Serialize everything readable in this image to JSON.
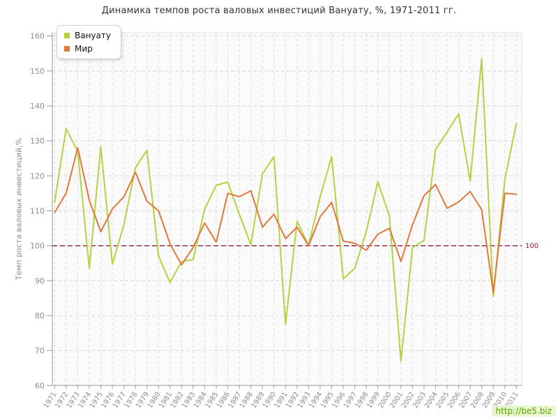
{
  "chart_data": {
    "type": "line",
    "title": "Динамика темпов роста валовых инвестиций Вануату, %, 1971-2011 гг.",
    "ylabel": "Темп роста валовых инвестиций,%",
    "ylim": [
      60,
      160
    ],
    "ytick_step": 10,
    "grid": "dashed",
    "legend_position": "top-left",
    "categories": [
      "1971",
      "1972",
      "1973",
      "1974",
      "1975",
      "1976",
      "1977",
      "1978",
      "1979",
      "1980",
      "1981",
      "1982",
      "1983",
      "1984",
      "1985",
      "1986",
      "1987",
      "1988",
      "1989",
      "1990",
      "1991",
      "1992",
      "1993",
      "1994",
      "1995",
      "1996",
      "1997",
      "1998",
      "1999",
      "2000",
      "2001",
      "2002",
      "2003",
      "2004",
      "2005",
      "2006",
      "2007",
      "2008",
      "2009",
      "2010",
      "2011"
    ],
    "series": [
      {
        "name": "Вануату",
        "color": "#b3d23f",
        "values": [
          112.5,
          133.5,
          127,
          93.5,
          128.3,
          94.7,
          106,
          122.3,
          127.3,
          97,
          89.5,
          95.5,
          96,
          110.5,
          117.3,
          118.2,
          109,
          100.3,
          120.5,
          125.5,
          77.5,
          107,
          100,
          114,
          125.5,
          90.5,
          93.5,
          104,
          118.3,
          108.5,
          67,
          99.5,
          101.5,
          127.5,
          132.5,
          137.7,
          118.5,
          153.5,
          85.5,
          119,
          135
        ]
      },
      {
        "name": "Мир",
        "color": "#e2773b",
        "values": [
          109.5,
          115,
          128,
          113,
          104,
          110.5,
          114,
          121,
          112.7,
          110,
          100.5,
          94.5,
          99.5,
          106.5,
          101,
          115,
          114,
          115.7,
          105.3,
          109,
          102,
          105.3,
          100,
          108.3,
          112.4,
          101.3,
          100.7,
          98.7,
          103.3,
          105,
          95.5,
          106,
          114.3,
          117.5,
          110.7,
          112.5,
          115.5,
          110.3,
          86.5,
          115,
          114.7
        ]
      }
    ],
    "baseline": {
      "value": 100,
      "label": "100",
      "color": "#8b1d3c"
    }
  },
  "watermark": {
    "text": "http://be5.biz",
    "color": "#56a300",
    "background": "#e9f6cf"
  }
}
